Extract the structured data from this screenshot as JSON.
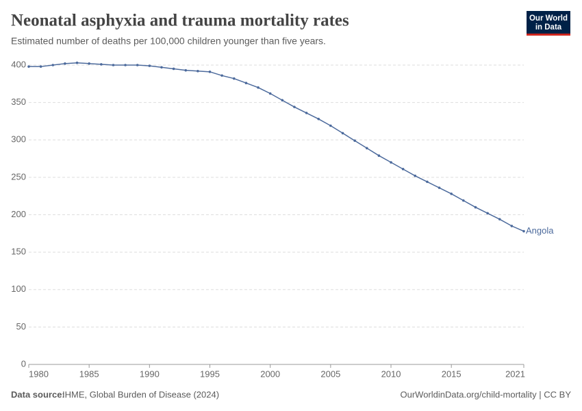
{
  "logo": [
    "Our World",
    "in Data"
  ],
  "chart_data": {
    "type": "line",
    "title": "Neonatal asphyxia and trauma mortality rates",
    "subtitle": "Estimated number of deaths per 100,000 children younger than five years.",
    "source_label": "Data source:",
    "source": "IHME, Global Burden of Disease (2024)",
    "footer_right": "OurWorldinData.org/child-mortality | CC BY",
    "x": [
      1980,
      1981,
      1982,
      1983,
      1984,
      1985,
      1986,
      1987,
      1988,
      1989,
      1990,
      1991,
      1992,
      1993,
      1994,
      1995,
      1996,
      1997,
      1998,
      1999,
      2000,
      2001,
      2002,
      2003,
      2004,
      2005,
      2006,
      2007,
      2008,
      2009,
      2010,
      2011,
      2012,
      2013,
      2014,
      2015,
      2016,
      2017,
      2018,
      2019,
      2020,
      2021
    ],
    "series": [
      {
        "name": "Angola",
        "color": "#4c6a9c",
        "values": [
          398,
          398,
          400,
          402,
          403,
          402,
          401,
          400,
          400,
          400,
          399,
          397,
          395,
          393,
          392,
          391,
          386,
          382,
          376,
          370,
          362,
          353,
          344,
          336,
          328,
          319,
          309,
          299,
          289,
          279,
          270,
          261,
          252,
          244,
          236,
          228,
          219,
          210,
          202,
          194,
          185,
          178
        ]
      }
    ],
    "xlim": [
      1980,
      2021
    ],
    "xticks": [
      1980,
      1985,
      1990,
      1995,
      2000,
      2005,
      2010,
      2015,
      2021
    ],
    "ylim": [
      0,
      400
    ],
    "yticks": [
      0,
      50,
      100,
      150,
      200,
      250,
      300,
      350,
      400
    ],
    "grid": true
  }
}
